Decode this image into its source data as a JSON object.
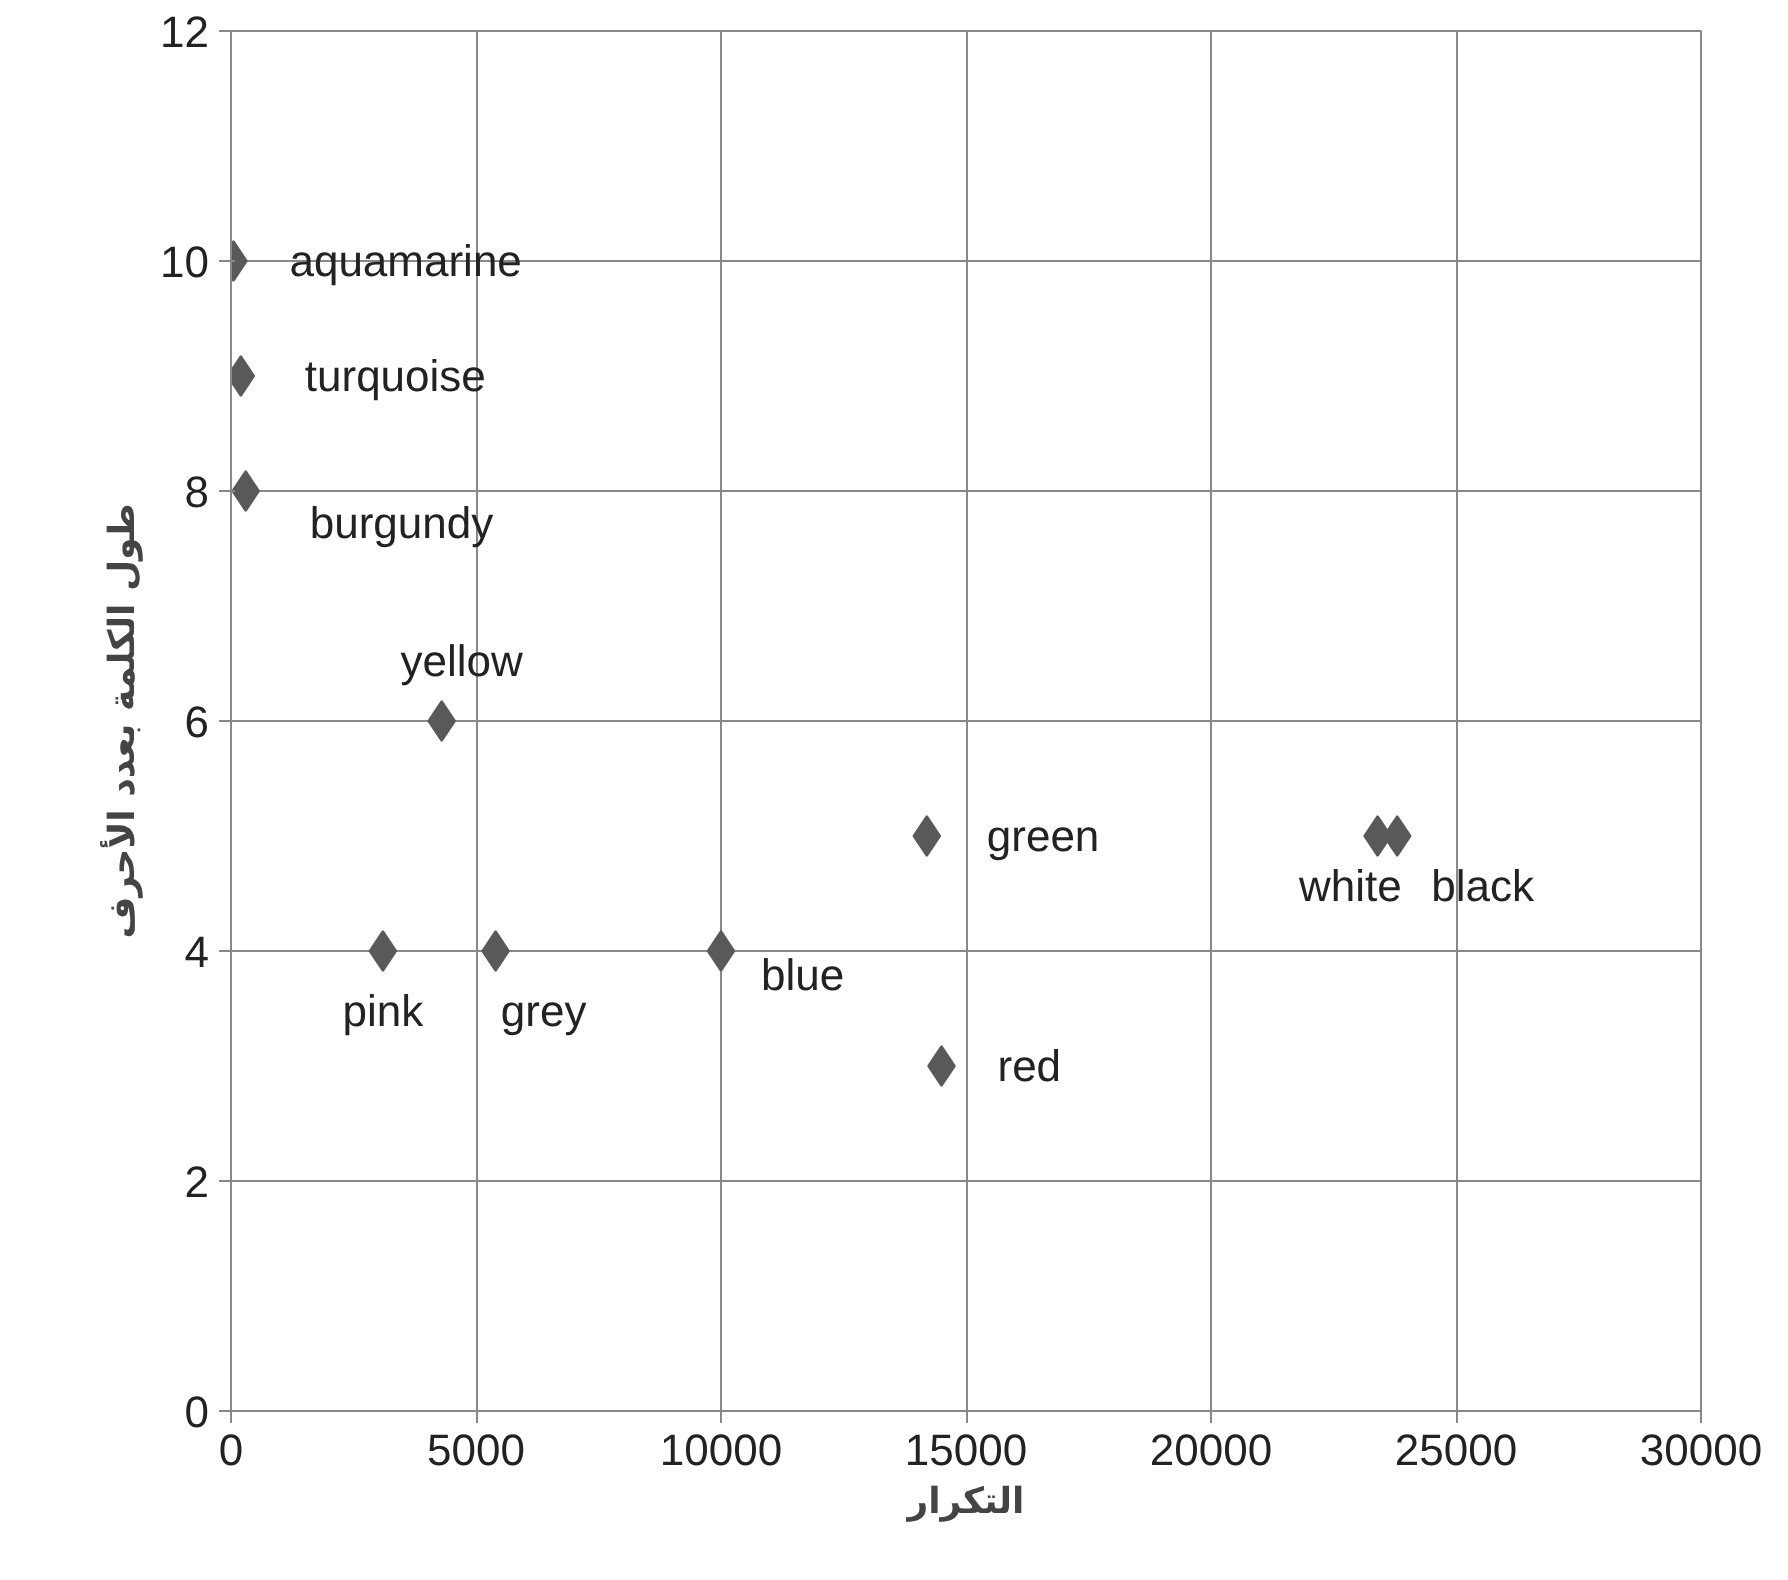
{
  "chart_data": {
    "type": "scatter",
    "xlabel": "التكرار",
    "ylabel": "طول الكلمة بعدد الأحرف",
    "x": [
      50,
      200,
      300,
      4300,
      3100,
      5400,
      10000,
      14200,
      14500,
      23400,
      23800
    ],
    "values": [
      10,
      9,
      8,
      6,
      4,
      4,
      4,
      5,
      3,
      5,
      5
    ],
    "color": "#595959",
    "marker": "diamond",
    "grid": true,
    "xlim": [
      0,
      30000
    ],
    "xticks": [
      0,
      5000,
      10000,
      15000,
      20000,
      25000,
      30000
    ],
    "ylim": [
      0,
      12
    ],
    "yticks": [
      0,
      2,
      4,
      6,
      8,
      10,
      12
    ],
    "annotations": [
      {
        "text": "aquamarine",
        "x": 50,
        "y": 10
      },
      {
        "text": "turquoise",
        "x": 200,
        "y": 9
      },
      {
        "text": "burgundy",
        "x": 300,
        "y": 8
      },
      {
        "text": "yellow",
        "x": 4300,
        "y": 6
      },
      {
        "text": "pink",
        "x": 3100,
        "y": 4
      },
      {
        "text": "grey",
        "x": 5400,
        "y": 4
      },
      {
        "text": "blue",
        "x": 10000,
        "y": 4
      },
      {
        "text": "green",
        "x": 14200,
        "y": 5
      },
      {
        "text": "red",
        "x": 14500,
        "y": 3
      },
      {
        "text": "white",
        "x": 23400,
        "y": 5
      },
      {
        "text": "black",
        "x": 23800,
        "y": 5
      }
    ]
  }
}
